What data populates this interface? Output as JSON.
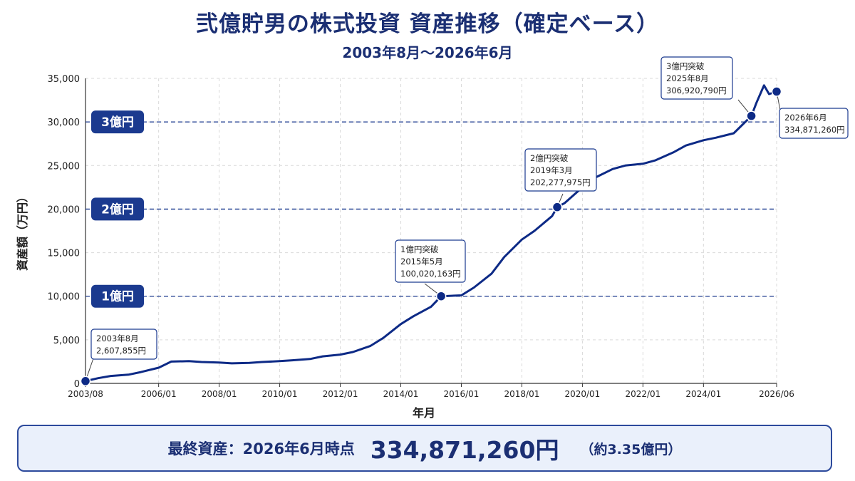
{
  "title": "弐億貯男の株式投資 資産推移（確定ベース）",
  "subtitle": "2003年8月～2026年6月",
  "colors": {
    "line": "#0d2a86",
    "accent": "#1b3a8f",
    "grid": "#d9d9d9",
    "summary_bg": "#eaf0fb"
  },
  "chart_data": {
    "type": "line",
    "title": "弐億貯男の株式投資 資産推移（確定ベース）",
    "subtitle": "2003年8月～2026年6月",
    "xlabel": "年月",
    "ylabel": "資産額（万円）",
    "ylim": [
      0,
      35000
    ],
    "xlim": [
      "2003-08",
      "2026-06"
    ],
    "y_ticks": [
      0,
      5000,
      10000,
      15000,
      20000,
      25000,
      30000,
      35000
    ],
    "y_tick_labels": [
      "0",
      "5,000",
      "10,000",
      "15,000",
      "20,000",
      "25,000",
      "30,000",
      "35,000"
    ],
    "x_ticks": [
      "2003-08",
      "2006-01",
      "2008-01",
      "2010-01",
      "2012-01",
      "2014-01",
      "2016-01",
      "2018-01",
      "2020-01",
      "2022-01",
      "2024-01",
      "2026-06"
    ],
    "x_tick_labels": [
      "2003/08",
      "2006/01",
      "2008/01",
      "2010/01",
      "2012/01",
      "2014/01",
      "2016/01",
      "2018/01",
      "2020/01",
      "2022/01",
      "2024/01",
      "2026/06"
    ],
    "grid": true,
    "reference_lines": [
      {
        "value": 10000,
        "label": "1億円"
      },
      {
        "value": 20000,
        "label": "2億円"
      },
      {
        "value": 30000,
        "label": "3億円"
      }
    ],
    "series": [
      {
        "points": [
          [
            "2003-08",
            261
          ],
          [
            "2004-01",
            600
          ],
          [
            "2004-06",
            850
          ],
          [
            "2005-01",
            1000
          ],
          [
            "2005-06",
            1300
          ],
          [
            "2006-01",
            1800
          ],
          [
            "2006-06",
            2500
          ],
          [
            "2007-01",
            2550
          ],
          [
            "2007-06",
            2450
          ],
          [
            "2008-01",
            2400
          ],
          [
            "2008-06",
            2300
          ],
          [
            "2009-01",
            2350
          ],
          [
            "2009-06",
            2450
          ],
          [
            "2010-01",
            2550
          ],
          [
            "2010-06",
            2650
          ],
          [
            "2011-01",
            2800
          ],
          [
            "2011-06",
            3100
          ],
          [
            "2012-01",
            3300
          ],
          [
            "2012-06",
            3600
          ],
          [
            "2013-01",
            4300
          ],
          [
            "2013-06",
            5200
          ],
          [
            "2014-01",
            6800
          ],
          [
            "2014-06",
            7700
          ],
          [
            "2015-01",
            8800
          ],
          [
            "2015-05",
            10002
          ],
          [
            "2016-01",
            10100
          ],
          [
            "2016-06",
            11000
          ],
          [
            "2017-01",
            12600
          ],
          [
            "2017-06",
            14500
          ],
          [
            "2018-01",
            16500
          ],
          [
            "2018-06",
            17500
          ],
          [
            "2019-01",
            19200
          ],
          [
            "2019-03",
            20228
          ],
          [
            "2019-06",
            20700
          ],
          [
            "2020-01",
            22500
          ],
          [
            "2020-06",
            23600
          ],
          [
            "2021-01",
            24600
          ],
          [
            "2021-06",
            25000
          ],
          [
            "2022-01",
            25200
          ],
          [
            "2022-06",
            25600
          ],
          [
            "2023-01",
            26500
          ],
          [
            "2023-06",
            27300
          ],
          [
            "2024-01",
            27900
          ],
          [
            "2024-06",
            28200
          ],
          [
            "2025-01",
            28700
          ],
          [
            "2025-08",
            30692
          ],
          [
            "2025-10",
            32200
          ],
          [
            "2026-01",
            34200
          ],
          [
            "2026-03",
            33200
          ],
          [
            "2026-06",
            33487
          ]
        ]
      }
    ],
    "annotations": [
      {
        "x": "2003-08",
        "y": 261,
        "lines": [
          "2003年8月",
          "2,607,855円"
        ]
      },
      {
        "x": "2015-05",
        "y": 10002,
        "lines": [
          "1億円突破",
          "2015年5月",
          "100,020,163円"
        ]
      },
      {
        "x": "2019-03",
        "y": 20228,
        "lines": [
          "2億円突破",
          "2019年3月",
          "202,277,975円"
        ]
      },
      {
        "x": "2025-08",
        "y": 30692,
        "lines": [
          "3億円突破",
          "2025年8月",
          "306,920,790円"
        ]
      },
      {
        "x": "2026-06",
        "y": 33487,
        "lines": [
          "2026年6月",
          "334,871,260円"
        ]
      }
    ]
  },
  "summary": {
    "label": "最終資産：2026年6月時点",
    "value": "334,871,260円",
    "note": "（約3.35億円）"
  }
}
